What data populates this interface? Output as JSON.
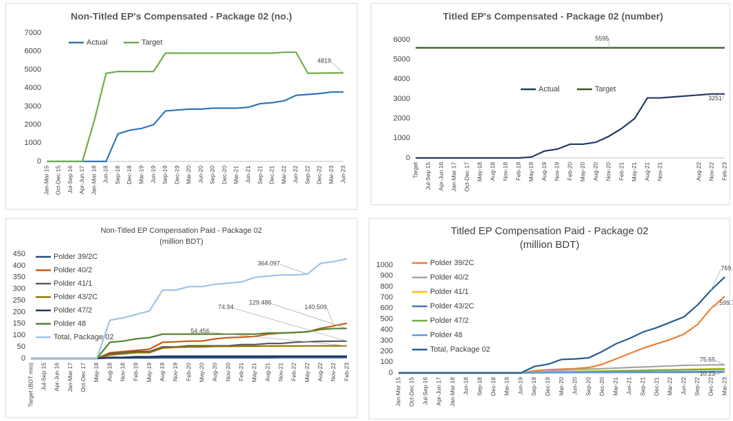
{
  "chart_data": [
    {
      "type": "line",
      "title": "Non-Titled EP's Compensated - Package 02 (no.)",
      "categories": [
        "Jan-Mar 15",
        "Oct-Dec 15",
        "Jul-Sep 16",
        "Apr-Jun 17",
        "Jan-Mar 18",
        "Jun-18",
        "Sep-18",
        "Dec-18",
        "Mar-19",
        "Jun-19",
        "Sep-19",
        "Dec-19",
        "Mar-20",
        "Jun-20",
        "Sep-20",
        "Dec-20",
        "Mar-21",
        "Jun-21",
        "Sep-21",
        "Dec-21",
        "Mar-22",
        "Jun-22",
        "Sep-22",
        "Dec-22",
        "Mar-23",
        "Jun-23"
      ],
      "series": [
        {
          "name": "Actual",
          "color": "#2e75b6",
          "values": [
            0,
            0,
            0,
            0,
            0,
            0,
            1500,
            1700,
            1800,
            2000,
            2750,
            2800,
            2850,
            2850,
            2900,
            2900,
            2900,
            2950,
            3150,
            3200,
            3300,
            3600,
            3650,
            3700,
            3780,
            3780
          ]
        },
        {
          "name": "Target",
          "color": "#70ad47",
          "values": [
            0,
            0,
            0,
            0,
            2200,
            4800,
            4900,
            4900,
            4900,
            4900,
            5900,
            5900,
            5900,
            5900,
            5900,
            5900,
            5900,
            5900,
            5900,
            5900,
            5950,
            5950,
            4800,
            4810,
            4819,
            4819
          ]
        }
      ],
      "ylim": [
        0,
        7000
      ],
      "yticks": [
        0,
        1000,
        2000,
        3000,
        4000,
        5000,
        6000,
        7000
      ],
      "legend": "top"
    },
    {
      "type": "line",
      "title": "Titled EP's Compensated - Package 02 (number)",
      "categories": [
        "Target",
        "Jul-Sep 15",
        "Apr-Jun 16",
        "Jan-Mar 17",
        "Oct-Dec 17",
        "May-18",
        "Aug-18",
        "Nov-18",
        "Feb-19",
        "May-19",
        "Aug-19",
        "Nov-19",
        "Feb-20",
        "May-20",
        "Aug-20",
        "Nov-20",
        "Feb-21",
        "May-21",
        "Aug-21",
        "Nov-21",
        null,
        null,
        "Aug-22",
        "Nov-22",
        "Feb-23"
      ],
      "series": [
        {
          "name": "Actual",
          "color": "#1f3864",
          "values": [
            0,
            0,
            0,
            0,
            0,
            0,
            0,
            0,
            0,
            50,
            350,
            450,
            700,
            700,
            800,
            1100,
            1500,
            2000,
            3050,
            3050,
            3100,
            3150,
            3200,
            3250,
            3251
          ]
        },
        {
          "name": "Target",
          "color": "#375623",
          "values": [
            5595,
            5595,
            5595,
            5595,
            5595,
            5595,
            5595,
            5595,
            5595,
            5595,
            5595,
            5595,
            5595,
            5595,
            5595,
            5595,
            5595,
            5595,
            5595,
            5595,
            5595,
            5595,
            5595,
            5595,
            5595
          ]
        }
      ],
      "ylim": [
        0,
        6000
      ],
      "yticks": [
        0,
        1000,
        2000,
        3000,
        4000,
        5000,
        6000
      ],
      "legend": "center"
    },
    {
      "type": "line",
      "title": "Non-Titled EP Compensation Paid - Package 02",
      "subtitle": "(million BDT)",
      "categories": [
        "Target (BDT mio)",
        "Jul-Sep 15",
        "Apr-Jun 16",
        "Jan-Mar 17",
        "Oct-Dec 17",
        "May-18",
        "Aug-18",
        "Nov-18",
        "Feb-19",
        "May-19",
        "Aug-19",
        "Nov-19",
        "Feb-20",
        "May-20",
        "Aug-20",
        "Nov-20",
        "Feb-21",
        "May-21",
        "Aug-21",
        "Nov-21",
        "Feb-22",
        "May-22",
        "Aug-22",
        "Nov-22",
        "Feb-23"
      ],
      "series": [
        {
          "name": "Polder 39/2C",
          "color": "#1f4e79",
          "values": [
            0,
            0,
            0,
            0,
            0,
            0,
            2,
            2,
            3,
            3,
            4,
            4,
            4,
            4,
            4,
            4,
            4,
            4,
            4,
            5,
            5,
            5,
            5,
            5,
            5
          ]
        },
        {
          "name": "Polder 40/2",
          "color": "#c55a11",
          "values": [
            0,
            0,
            0,
            0,
            0,
            0,
            25,
            30,
            35,
            40,
            70,
            72,
            75,
            75,
            85,
            90,
            92,
            95,
            105,
            110,
            112,
            115,
            130,
            140.509,
            152
          ]
        },
        {
          "name": "Polder 41/1",
          "color": "#595959",
          "values": [
            0,
            0,
            0,
            0,
            0,
            0,
            20,
            25,
            30,
            30,
            50,
            50,
            55,
            55,
            55,
            55,
            60,
            60,
            65,
            65,
            70,
            72,
            74,
            74.5,
            74.94
          ]
        },
        {
          "name": "Polder 43/2C",
          "color": "#997300",
          "values": [
            0,
            0,
            0,
            0,
            0,
            0,
            15,
            20,
            25,
            25,
            45,
            48,
            50,
            50,
            52,
            52,
            53,
            53,
            54,
            54,
            54,
            54.2,
            54.3,
            54.4,
            54.456
          ]
        },
        {
          "name": "Polder 47/2",
          "color": "#203864",
          "values": [
            0,
            0,
            0,
            0,
            0,
            0,
            5,
            5,
            8,
            8,
            10,
            10,
            10,
            10,
            10,
            10,
            10,
            10,
            10,
            10,
            10,
            10,
            10,
            10,
            10
          ]
        },
        {
          "name": "Polder 48",
          "color": "#548235",
          "values": [
            0,
            0,
            0,
            0,
            0,
            0,
            70,
            75,
            85,
            90,
            105,
            105,
            105,
            105,
            105,
            105,
            105,
            105,
            110,
            110,
            112,
            115,
            125,
            129,
            129.486
          ]
        },
        {
          "name": "Total, Package 02",
          "color": "#9dc3e6",
          "values": [
            0,
            0,
            0,
            0,
            0,
            0,
            165,
            175,
            190,
            205,
            295,
            295,
            310,
            310,
            320,
            325,
            330,
            350,
            355,
            360,
            360,
            364.097,
            410,
            418,
            430
          ]
        }
      ],
      "ylim": [
        0,
        450
      ],
      "yticks": [
        0,
        50,
        100,
        150,
        200,
        250,
        300,
        350,
        400,
        450
      ],
      "legend": "left"
    },
    {
      "type": "line",
      "title": "Titled EP Compensation Paid - Package 02",
      "subtitle": "(million BDT)",
      "categories": [
        "Jan-Mar 15",
        "Oct-Dec 15",
        "Jul-Sep 16",
        "Apr-Jun 17",
        "Jan-Mar 18",
        "Jun-18",
        "Sep-18",
        "Dec-18",
        "Mar-19",
        "Jun-19",
        "Sep-19",
        "Dec-19",
        "Mar-20",
        "Jun-20",
        "Sep-20",
        "Dec-20",
        "Mar-21",
        "Jun-21",
        "Sep-21",
        "Dec-21",
        "Mar-22",
        "Jun-22",
        "Sep-22",
        "Dec-22",
        "Mar-23"
      ],
      "series": [
        {
          "name": "Polder 39/2C",
          "color": "#ed7d31",
          "values": [
            0,
            0,
            0,
            0,
            0,
            0,
            0,
            0,
            0,
            0,
            20,
            30,
            35,
            40,
            50,
            80,
            130,
            180,
            230,
            270,
            310,
            360,
            450,
            599.75,
            710
          ]
        },
        {
          "name": "Polder 40/2",
          "color": "#a5a5a5",
          "values": [
            0,
            0,
            0,
            0,
            0,
            0,
            0,
            0,
            0,
            0,
            10,
            20,
            25,
            30,
            35,
            40,
            45,
            50,
            55,
            60,
            65,
            70,
            72,
            74,
            75.65
          ]
        },
        {
          "name": "Polder 41/1",
          "color": "#ffc000",
          "values": [
            0,
            0,
            0,
            0,
            0,
            0,
            0,
            0,
            0,
            0,
            5,
            8,
            10,
            12,
            15,
            18,
            20,
            22,
            25,
            28,
            30,
            32,
            35,
            38,
            40
          ]
        },
        {
          "name": "Polder 43/2C",
          "color": "#4472c4",
          "values": [
            0,
            0,
            0,
            0,
            0,
            0,
            0,
            0,
            0,
            0,
            2,
            3,
            4,
            4,
            5,
            5,
            6,
            6,
            7,
            7,
            8,
            8,
            9,
            10,
            10.23
          ]
        },
        {
          "name": "Polder 47/2",
          "color": "#70ad47",
          "values": [
            0,
            0,
            0,
            0,
            0,
            0,
            0,
            0,
            0,
            0,
            3,
            5,
            8,
            10,
            12,
            15,
            18,
            20,
            22,
            25,
            27,
            29,
            31,
            33,
            35
          ]
        },
        {
          "name": "Polder 48",
          "color": "#5b9bd5",
          "values": [
            0,
            0,
            0,
            0,
            0,
            0,
            0,
            0,
            0,
            0,
            1,
            2,
            3,
            4,
            5,
            6,
            7,
            8,
            9,
            10,
            11,
            12,
            13,
            14,
            15
          ]
        },
        {
          "name": "Total, Package 02",
          "color": "#255e91",
          "values": [
            0,
            0,
            0,
            0,
            0,
            0,
            0,
            0,
            0,
            0,
            60,
            80,
            125,
            130,
            140,
            200,
            270,
            320,
            380,
            420,
            470,
            520,
            630,
            769.38,
            890
          ]
        }
      ],
      "ylim": [
        0,
        1000
      ],
      "yticks": [
        0,
        100,
        200,
        300,
        400,
        500,
        600,
        700,
        800,
        900,
        1000
      ],
      "legend": "left"
    }
  ]
}
